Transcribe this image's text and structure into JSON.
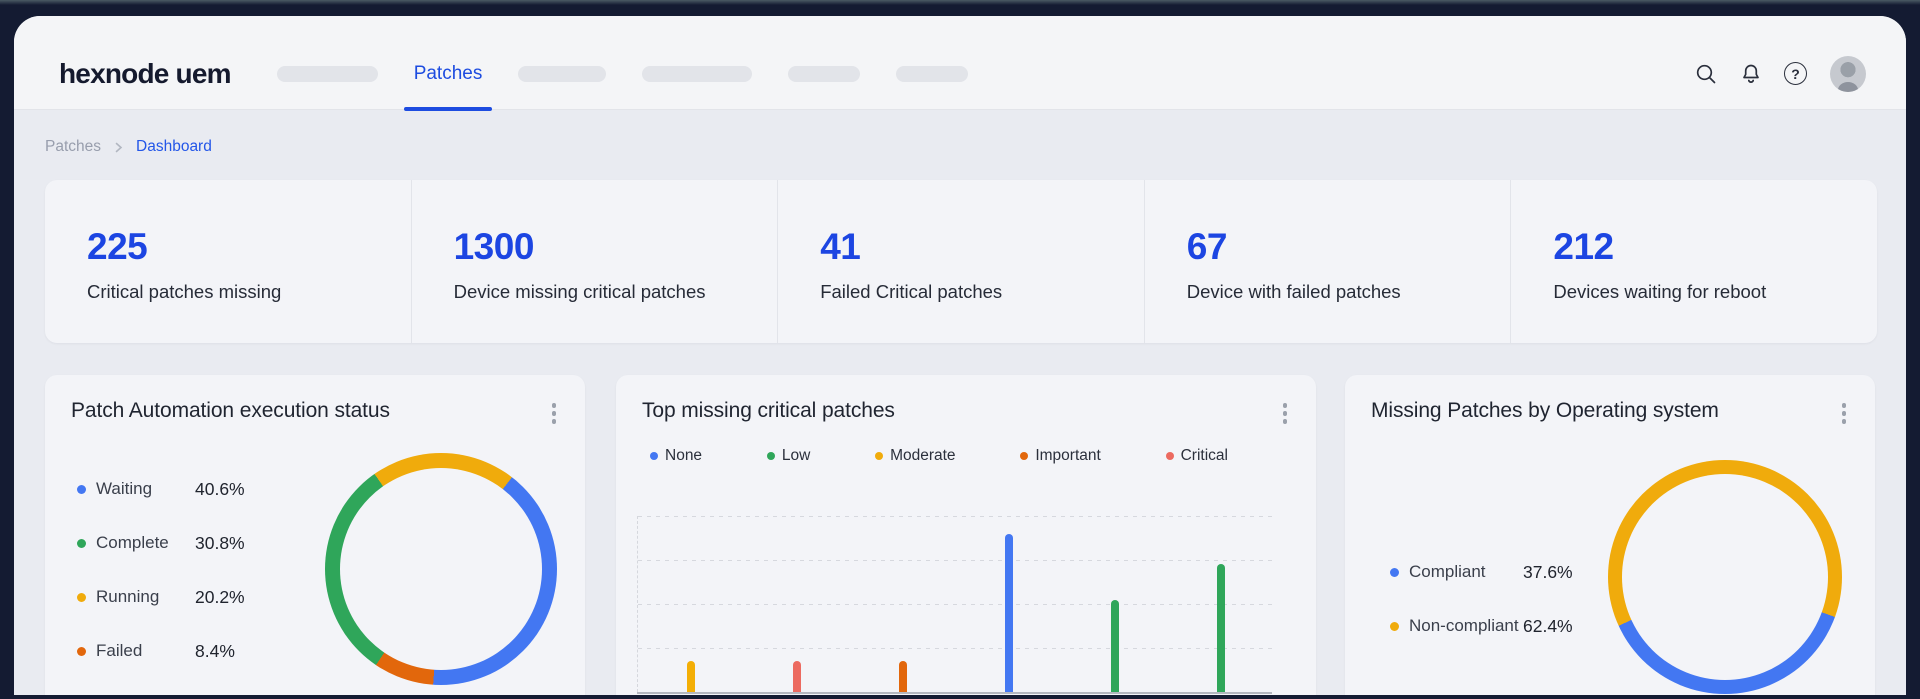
{
  "window": {
    "brand": "hexnode uem"
  },
  "header": {
    "nav": {
      "active": "Patches",
      "placeholder_items": 5
    },
    "icons": [
      "search",
      "notifications",
      "help",
      "avatar"
    ]
  },
  "breadcrumb": {
    "parent": "Patches",
    "current": "Dashboard"
  },
  "colors": {
    "accent_blue": "#1c45e2",
    "chart_blue": "#4377f2",
    "chart_green": "#2fa65a",
    "chart_yellow": "#f0ab0c",
    "chart_orange": "#e2670c",
    "chart_red": "#ec6a60",
    "frame_dark": "#141b32"
  },
  "stats": [
    {
      "value": "225",
      "label": "Critical patches missing"
    },
    {
      "value": "1300",
      "label": "Device missing critical patches"
    },
    {
      "value": "41",
      "label": "Failed Critical patches"
    },
    {
      "value": "67",
      "label": "Device with failed patches"
    },
    {
      "value": "212",
      "label": "Devices waiting for reboot"
    }
  ],
  "cards": [
    {
      "title": "Patch Automation execution status",
      "chart_data": {
        "type": "pie",
        "donut": true,
        "legend_position": "left",
        "segments": [
          {
            "label": "Waiting",
            "pct": 40.6,
            "color": "#4377f2"
          },
          {
            "label": "Complete",
            "pct": 30.8,
            "color": "#2fa65a"
          },
          {
            "label": "Running",
            "pct": 20.2,
            "color": "#f0ab0c"
          },
          {
            "label": "Failed",
            "pct": 8.4,
            "color": "#e2670c"
          }
        ],
        "ring_order": [
          2,
          0,
          3,
          1
        ],
        "start_angle_deg": 325
      }
    },
    {
      "title": "Top missing critical patches",
      "chart_data": {
        "type": "bar",
        "grid": "dashed-horizontal",
        "x_axis_labels_visible": false,
        "y_axis_labels_visible": false,
        "ylim": [
          0,
          4
        ],
        "gridline_step": 1,
        "note": "axis labels cut off below screenshot; values estimated in gridline units",
        "legend": [
          {
            "label": "None",
            "color": "#4377f2"
          },
          {
            "label": "Low",
            "color": "#2fa65a"
          },
          {
            "label": "Moderate",
            "color": "#f0ab0c"
          },
          {
            "label": "Important",
            "color": "#e2670c"
          },
          {
            "label": "Critical",
            "color": "#ec6a60"
          }
        ],
        "bars": [
          {
            "severity": "Moderate",
            "value": 0.7,
            "color": "#f3ae06"
          },
          {
            "severity": "Critical",
            "value": 0.7,
            "color": "#ec6a60"
          },
          {
            "severity": "Important",
            "value": 0.7,
            "color": "#e2670c"
          },
          {
            "severity": "None",
            "value": 3.6,
            "color": "#4377f2"
          },
          {
            "severity": "Low",
            "value": 2.1,
            "color": "#2fa65a"
          },
          {
            "severity": "Low",
            "value": 2.9,
            "color": "#2fa65a"
          }
        ]
      }
    },
    {
      "title": "Missing Patches by Operating system",
      "chart_data": {
        "type": "pie",
        "donut": true,
        "legend_position": "left",
        "segments": [
          {
            "label": "Compliant",
            "pct": 37.6,
            "color": "#4377f2"
          },
          {
            "label": "Non-compliant",
            "pct": 62.4,
            "color": "#f0ab0c"
          }
        ],
        "ring_order": [
          0,
          1
        ],
        "start_angle_deg": 110
      }
    }
  ]
}
